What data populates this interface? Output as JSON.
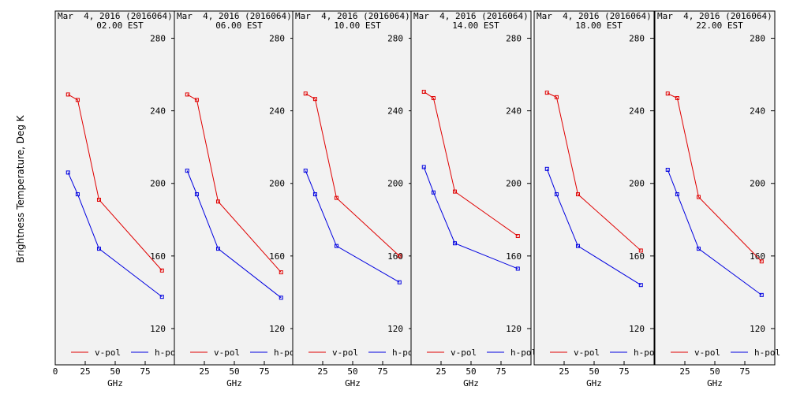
{
  "ylabel": "Brightness Temperature, Deg K",
  "colors": {
    "v-pol": "#e00000",
    "h-pol": "#0000e0",
    "axis": "#000000",
    "background": "#f2f2f2"
  },
  "chart_data": [
    {
      "type": "line",
      "title": "Mar  4, 2016 (2016064)",
      "subtitle": "02.00 EST",
      "xlabel": "GHz",
      "ylabel": "Brightness Temperature, Deg K",
      "xlim": [
        0,
        100
      ],
      "ylim": [
        100,
        295
      ],
      "x_ticks": [
        0,
        25,
        50,
        75
      ],
      "y_ticks": [
        120,
        160,
        200,
        240,
        280
      ],
      "grid": false,
      "legend": "bottom",
      "x": [
        10.7,
        18.7,
        36.5,
        89.0
      ],
      "series": [
        {
          "name": "v-pol",
          "values": [
            249,
            246,
            191,
            152
          ]
        },
        {
          "name": "h-pol",
          "values": [
            206,
            194,
            164,
            137.5
          ]
        }
      ]
    },
    {
      "type": "line",
      "title": "Mar  4, 2016 (2016064)",
      "subtitle": "06.00 EST",
      "xlabel": "GHz",
      "ylabel": "",
      "xlim": [
        0,
        100
      ],
      "ylim": [
        100,
        295
      ],
      "x_ticks": [
        25,
        50,
        75
      ],
      "y_ticks": [
        120,
        160,
        200,
        240,
        280
      ],
      "grid": false,
      "legend": "bottom",
      "x": [
        10.7,
        18.7,
        36.5,
        89.0
      ],
      "series": [
        {
          "name": "v-pol",
          "values": [
            249,
            246,
            190,
            151
          ]
        },
        {
          "name": "h-pol",
          "values": [
            207,
            194,
            164,
            137
          ]
        }
      ]
    },
    {
      "type": "line",
      "title": "Mar  4, 2016 (2016064)",
      "subtitle": "10.00 EST",
      "xlabel": "GHz",
      "ylabel": "",
      "xlim": [
        0,
        100
      ],
      "ylim": [
        100,
        295
      ],
      "x_ticks": [
        25,
        50,
        75
      ],
      "y_ticks": [
        120,
        160,
        200,
        240,
        280
      ],
      "grid": false,
      "legend": "bottom",
      "x": [
        10.7,
        18.7,
        36.5,
        89.0
      ],
      "series": [
        {
          "name": "v-pol",
          "values": [
            249.5,
            246.5,
            192,
            160
          ]
        },
        {
          "name": "h-pol",
          "values": [
            207,
            194,
            165.5,
            145.5
          ]
        }
      ]
    },
    {
      "type": "line",
      "title": "Mar  4, 2016 (2016064)",
      "subtitle": "14.00 EST",
      "xlabel": "GHz",
      "ylabel": "",
      "xlim": [
        0,
        100
      ],
      "ylim": [
        100,
        295
      ],
      "x_ticks": [
        25,
        50,
        75
      ],
      "y_ticks": [
        120,
        160,
        200,
        240,
        280
      ],
      "grid": false,
      "legend": "bottom",
      "x": [
        10.7,
        18.7,
        36.5,
        89.0
      ],
      "series": [
        {
          "name": "v-pol",
          "values": [
            250.5,
            247,
            195.5,
            171
          ]
        },
        {
          "name": "h-pol",
          "values": [
            209,
            195,
            167,
            153
          ]
        }
      ]
    },
    {
      "type": "line",
      "title": "Mar  4, 2016 (2016064)",
      "subtitle": "18.00 EST",
      "xlabel": "GHz",
      "ylabel": "",
      "xlim": [
        0,
        100
      ],
      "ylim": [
        100,
        295
      ],
      "x_ticks": [
        25,
        50,
        75
      ],
      "y_ticks": [
        120,
        160,
        200,
        240,
        280
      ],
      "grid": false,
      "legend": "bottom",
      "x": [
        10.7,
        18.7,
        36.5,
        89.0
      ],
      "series": [
        {
          "name": "v-pol",
          "values": [
            250,
            247.5,
            194,
            163
          ]
        },
        {
          "name": "h-pol",
          "values": [
            208,
            194,
            165.5,
            144
          ]
        }
      ]
    },
    {
      "type": "line",
      "title": "Mar  4, 2016 (2016064)",
      "subtitle": "22.00 EST",
      "xlabel": "GHz",
      "ylabel": "",
      "xlim": [
        0,
        100
      ],
      "ylim": [
        100,
        295
      ],
      "x_ticks": [
        25,
        50,
        75
      ],
      "y_ticks": [
        120,
        160,
        200,
        240,
        280
      ],
      "grid": false,
      "legend": "bottom",
      "x": [
        10.7,
        18.7,
        36.5,
        89.0
      ],
      "series": [
        {
          "name": "v-pol",
          "values": [
            249.5,
            247,
            192.5,
            157
          ]
        },
        {
          "name": "h-pol",
          "values": [
            207.5,
            194,
            164,
            138.5
          ]
        }
      ]
    }
  ]
}
